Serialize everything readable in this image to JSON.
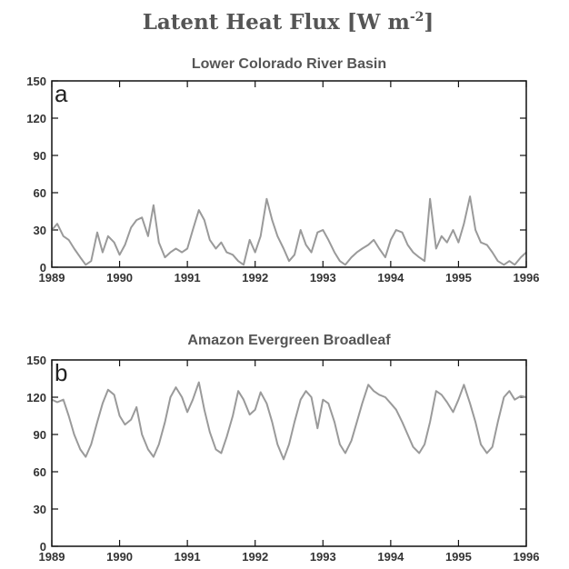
{
  "figure": {
    "title": "Latent Heat Flux [W m⁻²]"
  },
  "chart_data": [
    {
      "type": "line",
      "panel_label": "a",
      "title": "Lower Colorado River Basin",
      "xlim": [
        1989,
        1996
      ],
      "ylim": [
        0,
        150
      ],
      "x_ticks": [
        1989,
        1990,
        1991,
        1992,
        1993,
        1994,
        1995,
        1996
      ],
      "y_ticks": [
        0,
        30,
        60,
        90,
        120,
        150
      ],
      "grid": false,
      "series": [
        {
          "color": "#9a9a9a",
          "x": [
            1989.0,
            1989.08,
            1989.17,
            1989.25,
            1989.33,
            1989.42,
            1989.5,
            1989.58,
            1989.67,
            1989.75,
            1989.83,
            1989.92,
            1990.0,
            1990.08,
            1990.17,
            1990.25,
            1990.33,
            1990.42,
            1990.5,
            1990.58,
            1990.67,
            1990.75,
            1990.83,
            1990.92,
            1991.0,
            1991.08,
            1991.17,
            1991.25,
            1991.33,
            1991.42,
            1991.5,
            1991.58,
            1991.67,
            1991.75,
            1991.83,
            1991.92,
            1992.0,
            1992.08,
            1992.17,
            1992.25,
            1992.33,
            1992.42,
            1992.5,
            1992.58,
            1992.67,
            1992.75,
            1992.83,
            1992.92,
            1993.0,
            1993.08,
            1993.17,
            1993.25,
            1993.33,
            1993.42,
            1993.5,
            1993.58,
            1993.67,
            1993.75,
            1993.83,
            1993.92,
            1994.0,
            1994.08,
            1994.17,
            1994.25,
            1994.33,
            1994.42,
            1994.5,
            1994.58,
            1994.67,
            1994.75,
            1994.83,
            1994.92,
            1995.0,
            1995.08,
            1995.17,
            1995.25,
            1995.33,
            1995.42,
            1995.5,
            1995.58,
            1995.67,
            1995.75,
            1995.83,
            1995.92,
            1996.0
          ],
          "y": [
            30,
            35,
            25,
            22,
            15,
            8,
            2,
            5,
            28,
            12,
            25,
            20,
            10,
            18,
            32,
            38,
            40,
            25,
            50,
            20,
            8,
            12,
            15,
            12,
            15,
            30,
            46,
            38,
            22,
            15,
            20,
            12,
            10,
            5,
            2,
            22,
            12,
            25,
            55,
            38,
            25,
            15,
            5,
            10,
            30,
            18,
            12,
            28,
            30,
            22,
            12,
            5,
            2,
            8,
            12,
            15,
            18,
            22,
            15,
            8,
            22,
            30,
            28,
            18,
            12,
            8,
            5,
            55,
            15,
            25,
            20,
            30,
            20,
            35,
            57,
            30,
            20,
            18,
            12,
            5,
            2,
            5,
            2,
            8,
            12
          ]
        }
      ]
    },
    {
      "type": "line",
      "panel_label": "b",
      "title": "Amazon Evergreen Broadleaf",
      "xlim": [
        1989,
        1996
      ],
      "ylim": [
        0,
        150
      ],
      "x_ticks": [
        1989,
        1990,
        1991,
        1992,
        1993,
        1994,
        1995,
        1996
      ],
      "y_ticks": [
        0,
        30,
        60,
        90,
        120,
        150
      ],
      "grid": false,
      "series": [
        {
          "color": "#9a9a9a",
          "x": [
            1989.0,
            1989.08,
            1989.17,
            1989.25,
            1989.33,
            1989.42,
            1989.5,
            1989.58,
            1989.67,
            1989.75,
            1989.83,
            1989.92,
            1990.0,
            1990.08,
            1990.17,
            1990.25,
            1990.33,
            1990.42,
            1990.5,
            1990.58,
            1990.67,
            1990.75,
            1990.83,
            1990.92,
            1991.0,
            1991.08,
            1991.17,
            1991.25,
            1991.33,
            1991.42,
            1991.5,
            1991.58,
            1991.67,
            1991.75,
            1991.83,
            1991.92,
            1992.0,
            1992.08,
            1992.17,
            1992.25,
            1992.33,
            1992.42,
            1992.5,
            1992.58,
            1992.67,
            1992.75,
            1992.83,
            1992.92,
            1993.0,
            1993.08,
            1993.17,
            1993.25,
            1993.33,
            1993.42,
            1993.5,
            1993.58,
            1993.67,
            1993.75,
            1993.83,
            1993.92,
            1994.0,
            1994.08,
            1994.17,
            1994.25,
            1994.33,
            1994.42,
            1994.5,
            1994.58,
            1994.67,
            1994.75,
            1994.83,
            1994.92,
            1995.0,
            1995.08,
            1995.17,
            1995.25,
            1995.33,
            1995.42,
            1995.5,
            1995.58,
            1995.67,
            1995.75,
            1995.83,
            1995.92,
            1996.0
          ],
          "y": [
            118,
            116,
            118,
            105,
            90,
            78,
            72,
            82,
            100,
            115,
            126,
            122,
            105,
            98,
            102,
            112,
            90,
            78,
            72,
            82,
            100,
            120,
            128,
            120,
            108,
            118,
            132,
            110,
            92,
            78,
            75,
            88,
            105,
            125,
            118,
            106,
            110,
            124,
            115,
            100,
            82,
            70,
            82,
            100,
            118,
            125,
            120,
            95,
            118,
            115,
            100,
            82,
            75,
            85,
            100,
            115,
            130,
            125,
            122,
            120,
            115,
            110,
            100,
            90,
            80,
            75,
            82,
            100,
            125,
            122,
            116,
            108,
            118,
            130,
            115,
            100,
            82,
            75,
            80,
            100,
            120,
            125,
            118,
            121,
            120
          ]
        }
      ]
    }
  ]
}
